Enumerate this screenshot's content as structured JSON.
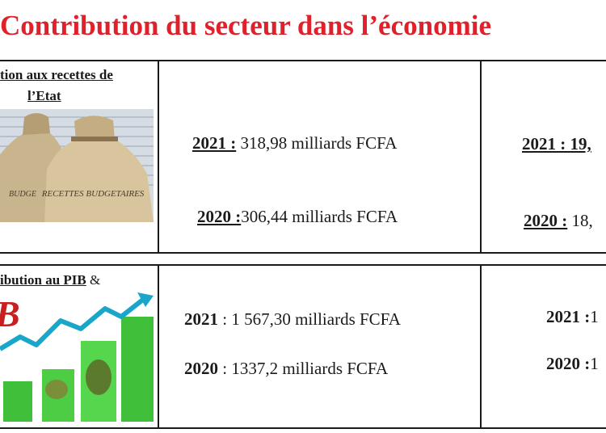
{
  "title": "Contribution du secteur dans l’économie",
  "rows": [
    {
      "header_line1": "tion aux recettes de",
      "header_line2": "l’Etat",
      "image_caption": "RECETTES BUDGETAIRES",
      "image_caption_left": "BUDGE",
      "mid": [
        {
          "year": "2021 :",
          "value": " 318,98 milliards FCFA"
        },
        {
          "year": "2020 :",
          "value": "306,44 milliards FCFA"
        }
      ],
      "right": [
        {
          "year": "2021 : 19,",
          "value": ""
        },
        {
          "year": "2020 :",
          "value": " 18,"
        }
      ]
    },
    {
      "header_line1": "ibution au PIB",
      "header_suffix": " &",
      "image_caption": "B",
      "mid": [
        {
          "year": "2021",
          "value": " : 1 567,30 milliards FCFA"
        },
        {
          "year": "2020",
          "value": " : 1337,2 milliards FCFA"
        }
      ],
      "right": [
        {
          "year": "2021 :",
          "value": "1"
        },
        {
          "year": "2020 :",
          "value": "1"
        }
      ]
    }
  ],
  "colors": {
    "title": "#e0202a",
    "border": "#1a1a1a"
  }
}
